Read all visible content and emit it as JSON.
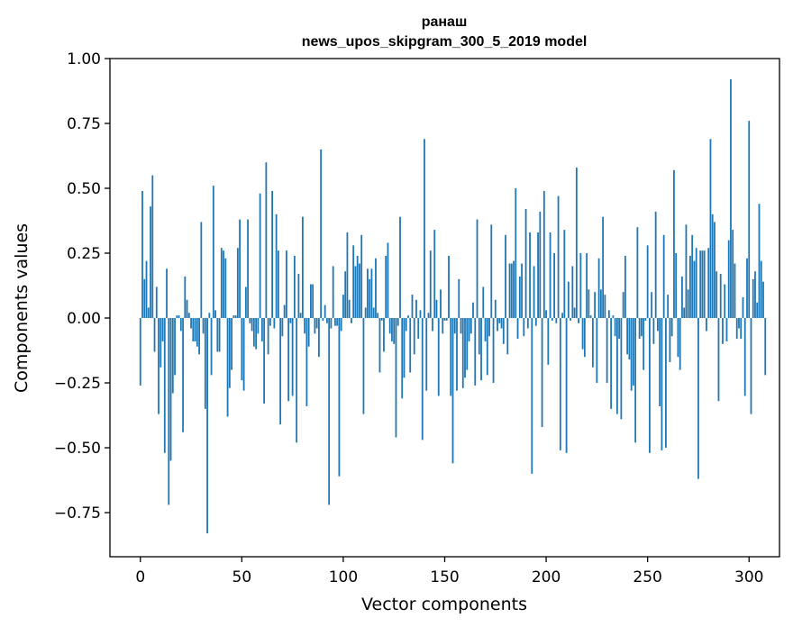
{
  "chart_data": {
    "type": "bar",
    "title": "ранаш",
    "subtitle": "news_upos_skipgram_300_5_2019 model",
    "xlabel": "Vector components",
    "ylabel": "Components values",
    "xlim": [
      -15,
      315
    ],
    "ylim": [
      -0.92,
      1.0
    ],
    "xticks": [
      0,
      50,
      100,
      150,
      200,
      250,
      300
    ],
    "xtick_labels": [
      "0",
      "50",
      "100",
      "150",
      "200",
      "250",
      "300"
    ],
    "yticks": [
      -0.75,
      -0.5,
      -0.25,
      0.0,
      0.25,
      0.5,
      0.75,
      1.0
    ],
    "ytick_labels": [
      "−0.75",
      "−0.50",
      "−0.25",
      "0.00",
      "0.25",
      "0.50",
      "0.75",
      "1.00"
    ],
    "color": "#1f77b4",
    "values": [
      -0.26,
      0.49,
      0.15,
      0.22,
      0.04,
      0.43,
      0.55,
      -0.13,
      0.12,
      -0.37,
      -0.19,
      -0.09,
      -0.52,
      0.19,
      -0.72,
      -0.55,
      -0.29,
      -0.22,
      0.01,
      0.01,
      -0.05,
      -0.44,
      0.16,
      0.07,
      0.02,
      -0.04,
      -0.09,
      -0.09,
      -0.11,
      -0.14,
      0.37,
      -0.06,
      -0.35,
      -0.83,
      0.02,
      -0.22,
      0.51,
      0.03,
      -0.13,
      -0.13,
      0.27,
      0.26,
      0.23,
      -0.38,
      -0.27,
      -0.2,
      0.01,
      0.01,
      0.27,
      0.38,
      -0.24,
      -0.28,
      0.12,
      0.38,
      -0.02,
      -0.05,
      -0.11,
      -0.12,
      -0.06,
      0.48,
      -0.09,
      -0.33,
      0.6,
      -0.14,
      -0.03,
      0.49,
      -0.04,
      0.4,
      0.26,
      -0.41,
      -0.07,
      0.05,
      0.26,
      -0.32,
      -0.02,
      -0.3,
      0.24,
      -0.48,
      0.17,
      0.02,
      0.39,
      -0.06,
      -0.34,
      -0.11,
      0.13,
      0.13,
      -0.06,
      -0.04,
      -0.15,
      0.65,
      -0.01,
      0.05,
      -0.02,
      -0.72,
      -0.04,
      0.2,
      -0.03,
      -0.03,
      -0.61,
      -0.05,
      0.09,
      0.18,
      0.33,
      0.07,
      -0.02,
      0.28,
      0.2,
      0.24,
      0.21,
      0.32,
      -0.37,
      0.04,
      0.19,
      0.15,
      0.19,
      0.04,
      0.23,
      0.02,
      -0.21,
      -0.01,
      -0.13,
      0.24,
      0.29,
      -0.06,
      -0.09,
      -0.1,
      -0.46,
      -0.03,
      0.39,
      -0.31,
      -0.23,
      -0.05,
      0.01,
      -0.21,
      0.09,
      -0.14,
      0.07,
      -0.08,
      0.03,
      -0.47,
      0.69,
      -0.28,
      0.02,
      0.26,
      -0.05,
      0.34,
      0.07,
      -0.3,
      0.11,
      -0.06,
      -0.01,
      -0.01,
      0.24,
      -0.3,
      -0.56,
      -0.06,
      -0.28,
      0.15,
      -0.06,
      -0.27,
      -0.23,
      -0.2,
      -0.09,
      -0.06,
      0.06,
      -0.26,
      0.38,
      -0.14,
      -0.24,
      0.12,
      -0.09,
      -0.22,
      -0.07,
      0.36,
      -0.25,
      0.07,
      -0.05,
      -0.02,
      -0.04,
      -0.1,
      0.32,
      -0.14,
      0.21,
      0.21,
      0.22,
      0.5,
      -0.08,
      0.16,
      0.21,
      -0.07,
      0.42,
      -0.04,
      0.33,
      -0.6,
      0.2,
      -0.03,
      0.33,
      0.41,
      -0.42,
      0.49,
      0.03,
      -0.18,
      0.33,
      -0.01,
      0.25,
      -0.02,
      0.47,
      -0.51,
      0.02,
      0.34,
      -0.52,
      0.14,
      -0.01,
      0.2,
      0.04,
      0.58,
      -0.02,
      0.25,
      -0.12,
      -0.15,
      0.25,
      0.11,
      0.01,
      -0.19,
      0.1,
      -0.25,
      0.23,
      0.11,
      0.39,
      0.09,
      -0.25,
      0.03,
      -0.35,
      0.01,
      -0.07,
      -0.37,
      -0.08,
      -0.39,
      0.1,
      0.24,
      -0.14,
      -0.16,
      -0.28,
      -0.26,
      -0.48,
      0.35,
      -0.08,
      -0.07,
      -0.2,
      -0.01,
      0.28,
      -0.52,
      0.1,
      -0.1,
      0.41,
      -0.05,
      -0.34,
      -0.51,
      0.32,
      -0.5,
      0.09,
      -0.17,
      -0.07,
      0.57,
      0.25,
      -0.15,
      -0.2,
      0.16,
      0.04,
      0.36,
      0.11,
      0.24,
      0.32,
      0.22,
      0.27,
      -0.62,
      0.26,
      0.26,
      0.26,
      -0.05,
      0.27,
      0.69,
      0.4,
      0.37,
      0.18,
      -0.32,
      0.17,
      -0.1,
      0.13,
      -0.09,
      0.3,
      0.92,
      0.34,
      0.21,
      -0.08,
      -0.04,
      -0.08,
      0.08,
      -0.3,
      0.23,
      0.76,
      -0.37,
      0.15,
      0.18,
      0.06,
      0.44,
      0.22,
      0.14,
      -0.22
    ]
  }
}
